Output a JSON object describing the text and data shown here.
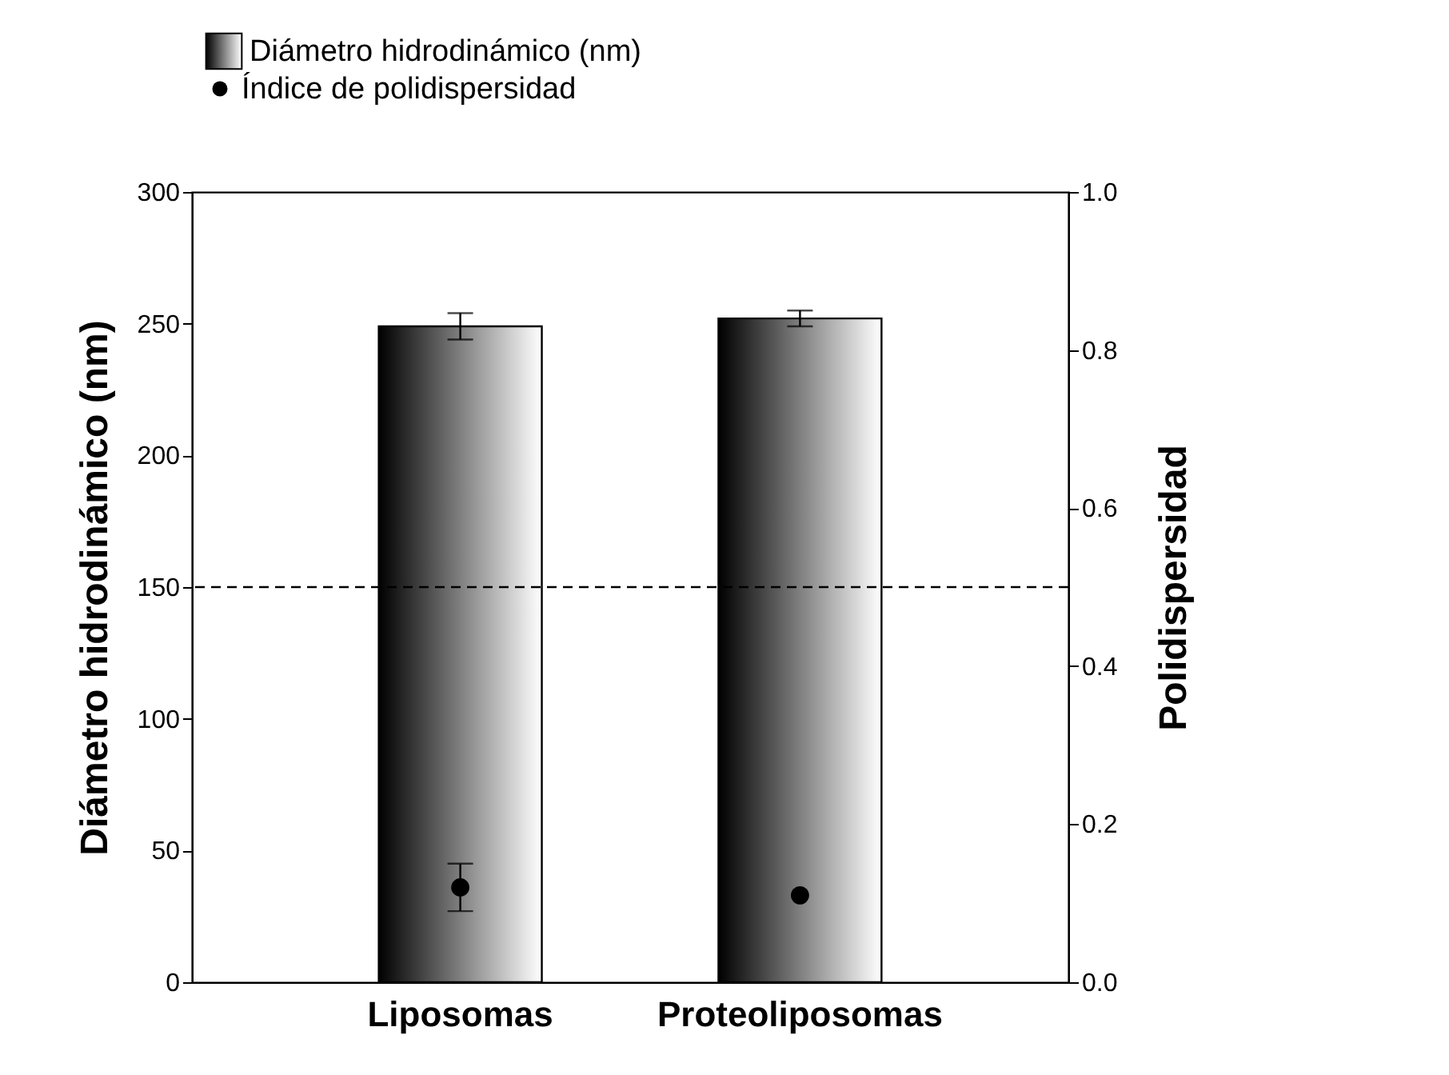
{
  "chart_data": {
    "type": "bar",
    "categories": [
      "Liposomas",
      "Proteoliposomas"
    ],
    "ylabel": "Diámetro hidrodinámico (nm)",
    "y2label": "Polidispersidad",
    "ylim": [
      0,
      300
    ],
    "yticks": [
      0,
      50,
      100,
      150,
      200,
      250,
      300
    ],
    "y2lim": [
      0,
      1
    ],
    "y2ticks": [
      {
        "value": 0,
        "label": "0.0"
      },
      0.2,
      0.4,
      0.6,
      0.8,
      {
        "value": 1,
        "label": "1.0"
      }
    ],
    "series": [
      {
        "name": "Diámetro hidrodinámico (nm)",
        "color": "#000000",
        "values": [
          249,
          252
        ],
        "errors": [
          5,
          3
        ]
      },
      {
        "name": "Índice de polidispersidad",
        "type": "scatter",
        "axis": "y2",
        "color": "#000000",
        "values": [
          0.12,
          0.11
        ],
        "errors": [
          0.03,
          null
        ]
      }
    ],
    "ref_lines": [
      {
        "axis": "y",
        "value": 150,
        "line_style": "dashed"
      }
    ],
    "legend": "top left",
    "marker": "circle",
    "grid": false
  }
}
